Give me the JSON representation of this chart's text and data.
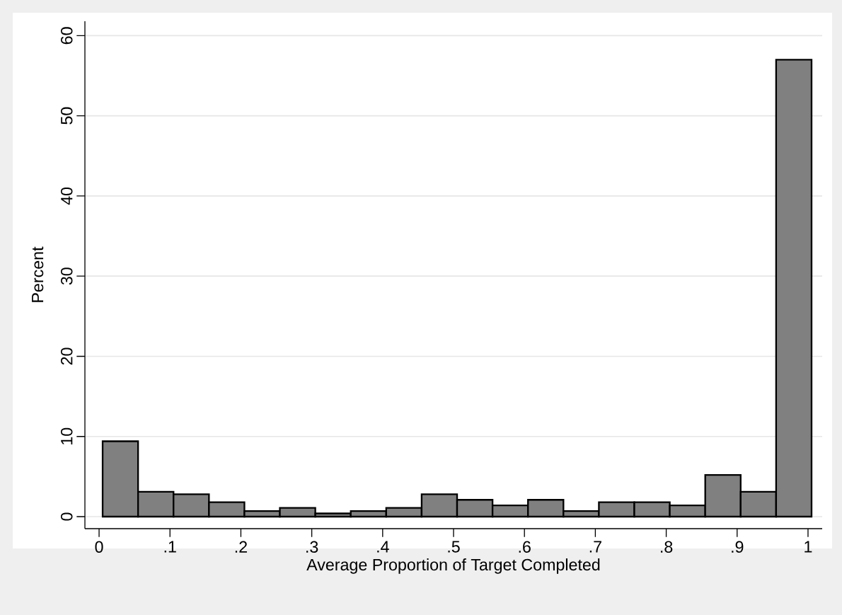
{
  "chart_data": {
    "type": "histogram",
    "xlabel": "Average Proportion of Target Completed",
    "ylabel": "Percent",
    "bins": [
      0.005,
      0.055,
      0.105,
      0.155,
      0.205,
      0.255,
      0.305,
      0.355,
      0.405,
      0.455,
      0.505,
      0.555,
      0.605,
      0.655,
      0.705,
      0.755,
      0.805,
      0.855,
      0.905,
      0.955,
      1.005
    ],
    "values": [
      9.4,
      3.1,
      2.8,
      1.8,
      0.7,
      1.1,
      0.4,
      0.7,
      1.1,
      2.8,
      2.1,
      1.4,
      2.1,
      0.7,
      1.8,
      1.8,
      1.4,
      5.2,
      3.1,
      57.0
    ],
    "color": "#808080",
    "xlim": [
      -0.02,
      1.02
    ],
    "ylim": [
      -1.5,
      61.8
    ],
    "xticks": [
      0,
      {
        "value": 0.1,
        "label": ".1"
      },
      {
        "value": 0.2,
        "label": ".2"
      },
      {
        "value": 0.3,
        "label": ".3"
      },
      {
        "value": 0.4,
        "label": ".4"
      },
      {
        "value": 0.5,
        "label": ".5"
      },
      {
        "value": 0.6,
        "label": ".6"
      },
      {
        "value": 0.7,
        "label": ".7"
      },
      {
        "value": 0.8,
        "label": ".8"
      },
      {
        "value": 0.9,
        "label": ".9"
      },
      1
    ],
    "yticks": [
      0,
      10,
      20,
      30,
      40,
      50,
      60
    ],
    "grid": "y"
  }
}
